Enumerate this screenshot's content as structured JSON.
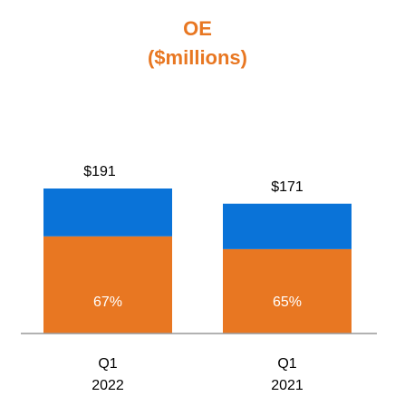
{
  "colors": {
    "title": "#E87722",
    "orange": "#E87722",
    "blue": "#0A73D8",
    "axis": "#999999"
  },
  "chart_data": {
    "type": "bar",
    "stacked": true,
    "title": "OE",
    "subtitle": "($millions)",
    "categories": [
      [
        "Q1",
        "2022"
      ],
      [
        "Q1",
        "2021"
      ]
    ],
    "totals": [
      191,
      171
    ],
    "total_labels": [
      "$191",
      "$171"
    ],
    "series": [
      {
        "color": "orange",
        "share": [
          0.67,
          0.65
        ],
        "labels": [
          "67%",
          "65%"
        ]
      },
      {
        "color": "blue",
        "share": [
          0.33,
          0.35
        ]
      }
    ],
    "ylim": [
      0,
      191
    ],
    "grid": false,
    "legend": "none"
  }
}
